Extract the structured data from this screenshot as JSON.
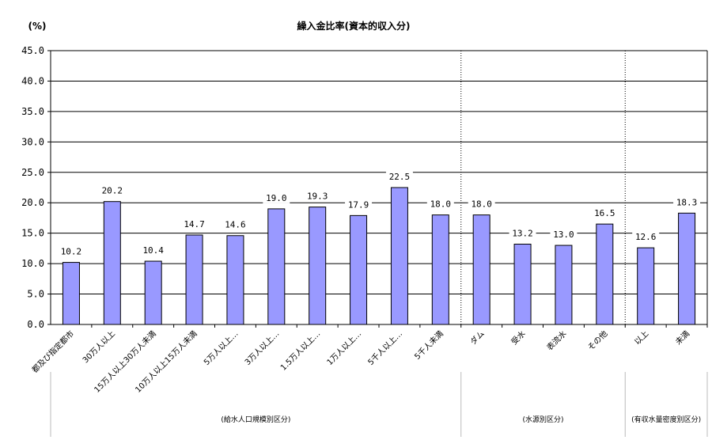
{
  "chart_data": {
    "type": "bar",
    "title": "繰入金比率(資本的収入分)",
    "ylabel": "(%)",
    "ylim": [
      0,
      45
    ],
    "yticks": [
      "0.0",
      "5.0",
      "10.0",
      "15.0",
      "20.0",
      "25.0",
      "30.0",
      "35.0",
      "40.0",
      "45.0"
    ],
    "grid": true,
    "categories": [
      "都及び指定都市",
      "30万人以上",
      "15万人以上30万人未満",
      "10万人以上15万人未満",
      "5万人以上…",
      "3万人以上…",
      "1.5万人以上…",
      "1万人以上…",
      "5千人以上…",
      "5千人未満",
      "ダム",
      "受水",
      "表流水",
      "その他",
      "以上",
      "未満"
    ],
    "values": [
      10.2,
      20.2,
      10.4,
      14.7,
      14.6,
      19.0,
      19.3,
      17.9,
      22.5,
      18.0,
      18.0,
      13.2,
      13.0,
      16.5,
      12.6,
      18.3
    ],
    "value_labels": [
      "10.2",
      "20.2",
      "10.4",
      "14.7",
      "14.6",
      "19.0",
      "19.3",
      "17.9",
      "22.5",
      "18.0",
      "18.0",
      "13.2",
      "13.0",
      "16.5",
      "12.6",
      "18.3"
    ],
    "bar_color": "#9999ff",
    "groups": [
      {
        "label": "(給水人口規模別区分)",
        "start": 0,
        "end": 9
      },
      {
        "label": "(水源別区分)",
        "start": 10,
        "end": 13
      },
      {
        "label": "(有収水量密度別区分)",
        "start": 14,
        "end": 15
      }
    ]
  }
}
